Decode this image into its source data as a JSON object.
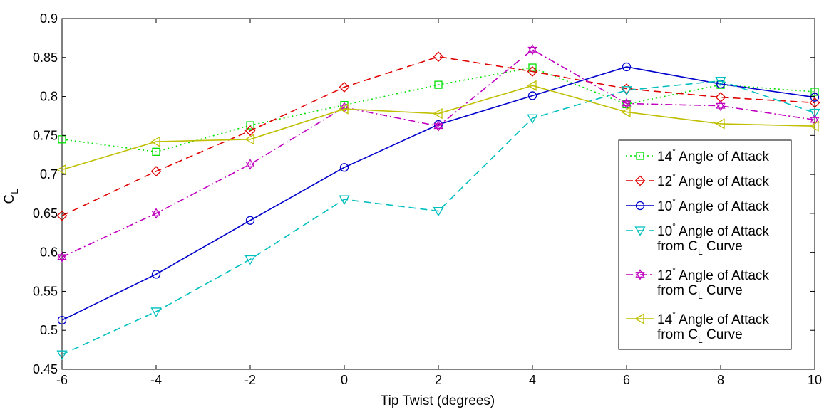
{
  "chart_data": {
    "type": "line",
    "xlabel": "Tip Twist (degrees)",
    "ylabel": "C",
    "ylabel_sub": "L",
    "xlim": [
      -6,
      10
    ],
    "ylim": [
      0.45,
      0.9
    ],
    "xticks": [
      "-6",
      "-4",
      "-2",
      "0",
      "2",
      "4",
      "6",
      "8",
      "10"
    ],
    "yticks": [
      "0.45",
      "0.5",
      "0.55",
      "0.6",
      "0.65",
      "0.7",
      "0.75",
      "0.8",
      "0.85",
      "0.9"
    ],
    "grid": false,
    "legend_position": "right",
    "x": [
      -6,
      -4,
      -2,
      0,
      2,
      4,
      6,
      8,
      10
    ],
    "series": [
      {
        "legend": [
          {
            "pre": "14",
            "sup": "°",
            "post": " Angle of Attack"
          }
        ],
        "values": [
          0.745,
          0.729,
          0.763,
          0.789,
          0.815,
          0.837,
          0.79,
          0.815,
          0.806
        ],
        "color": "#00e000",
        "dash": "2,4",
        "marker": "square"
      },
      {
        "legend": [
          {
            "pre": "12",
            "sup": "°",
            "post": " Angle of Attack"
          }
        ],
        "values": [
          0.647,
          0.704,
          0.756,
          0.812,
          0.851,
          0.832,
          0.81,
          0.799,
          0.792
        ],
        "color": "#e00000",
        "dash": "10,6",
        "marker": "diamond"
      },
      {
        "legend": [
          {
            "pre": "10",
            "sup": "°",
            "post": " Angle of Attack"
          }
        ],
        "values": [
          0.513,
          0.572,
          0.641,
          0.709,
          0.764,
          0.801,
          0.838,
          0.816,
          0.799
        ],
        "color": "#0000cc",
        "dash": "",
        "marker": "circle"
      },
      {
        "legend": [
          {
            "pre": "10",
            "sup": "°",
            "post": " Angle of Attack"
          },
          {
            "pre": "from C",
            "sub": "L",
            "post": " Curve"
          }
        ],
        "values": [
          0.469,
          0.524,
          0.591,
          0.668,
          0.653,
          0.772,
          0.808,
          0.82,
          0.779
        ],
        "color": "#00bfbf",
        "dash": "10,6",
        "marker": "triangle-down"
      },
      {
        "legend": [
          {
            "pre": "12",
            "sup": "°",
            "post": " Angle of Attack"
          },
          {
            "pre": "from C",
            "sub": "L",
            "post": " Curve"
          }
        ],
        "values": [
          0.594,
          0.65,
          0.713,
          0.786,
          0.762,
          0.86,
          0.791,
          0.788,
          0.77
        ],
        "color": "#bf00bf",
        "dash": "10,4,2,4",
        "marker": "hexagram"
      },
      {
        "legend": [
          {
            "pre": "14",
            "sup": "°",
            "post": " Angle of Attack"
          },
          {
            "pre": "from C",
            "sub": "L",
            "post": " Curve"
          }
        ],
        "values": [
          0.706,
          0.742,
          0.745,
          0.784,
          0.778,
          0.814,
          0.78,
          0.765,
          0.762
        ],
        "color": "#bfbf00",
        "dash": "",
        "marker": "triangle-left"
      }
    ]
  }
}
